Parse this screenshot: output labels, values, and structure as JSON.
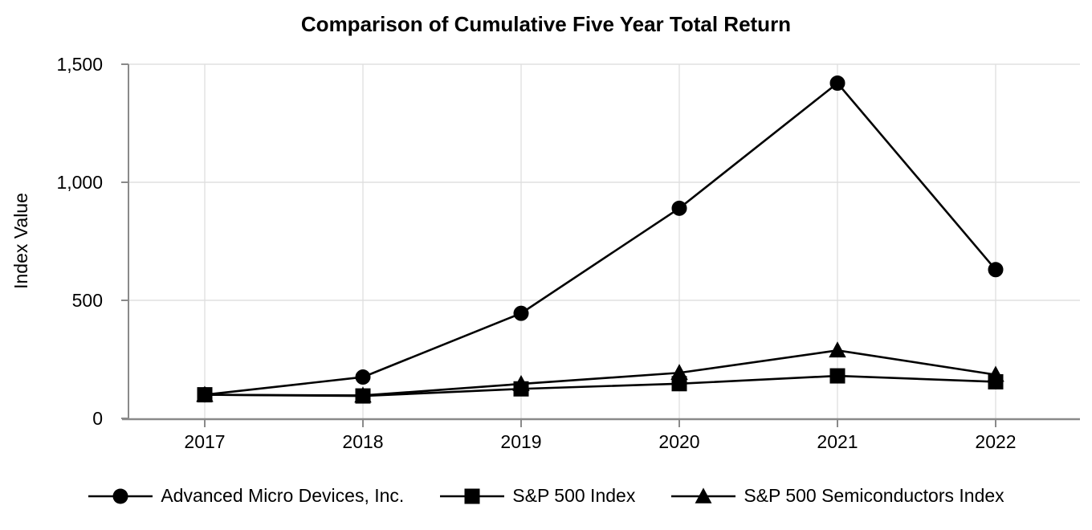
{
  "chart_data": {
    "type": "line",
    "title": "Comparison of Cumulative Five Year Total Return",
    "ylabel": "Index Value",
    "xlabel": "",
    "categories": [
      "2017",
      "2018",
      "2019",
      "2020",
      "2021",
      "2022"
    ],
    "series": [
      {
        "name": "Advanced Micro Devices, Inc.",
        "marker": "circle",
        "values": [
          100,
          175,
          445,
          890,
          1420,
          630
        ]
      },
      {
        "name": "S&P 500 Index",
        "marker": "square",
        "values": [
          100,
          95,
          125,
          147,
          180,
          155
        ]
      },
      {
        "name": "S&P 500 Semiconductors Index",
        "marker": "triangle",
        "values": [
          100,
          97,
          146,
          193,
          288,
          185
        ]
      }
    ],
    "ylim": [
      0,
      1500
    ],
    "yticks": [
      0,
      500,
      1000,
      1500
    ],
    "ytick_labels": [
      "0",
      "500",
      "1,000",
      "1,500"
    ],
    "grid": true,
    "legend_position": "bottom",
    "colors": {
      "series_line": "#000000",
      "marker_fill": "#000000",
      "grid": "#e0e0e0",
      "axis": "#8a8a8a",
      "text": "#000000",
      "background": "#ffffff"
    }
  }
}
